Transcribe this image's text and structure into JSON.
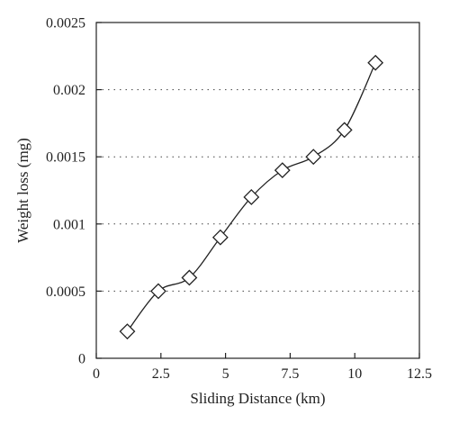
{
  "chart_data": {
    "type": "line",
    "title": "",
    "xlabel": "Sliding Distance (km)",
    "ylabel": "Weight loss (mg)",
    "xlim": [
      0,
      12.5
    ],
    "ylim": [
      0,
      0.0025
    ],
    "x_ticks": [
      0,
      2.5,
      5,
      7.5,
      10,
      12.5
    ],
    "y_ticks": [
      0,
      0.0005,
      0.001,
      0.0015,
      0.002,
      0.0025
    ],
    "x_tick_labels": [
      "0",
      "2.5",
      "5",
      "7.5",
      "10",
      "12.5"
    ],
    "y_tick_labels": [
      "0",
      "0.0005",
      "0.001",
      "0.0015",
      "0.002",
      "0.0025"
    ],
    "grid": "horizontal dotted",
    "marker": "diamond",
    "line_color": "#222222",
    "series": [
      {
        "x": [
          1.2,
          2.4,
          3.6,
          4.8,
          6.0,
          7.2,
          8.4,
          9.6,
          10.8
        ],
        "values": [
          0.0002,
          0.0005,
          0.0006,
          0.0009,
          0.0012,
          0.0014,
          0.0015,
          0.0017,
          0.0022
        ]
      }
    ]
  }
}
